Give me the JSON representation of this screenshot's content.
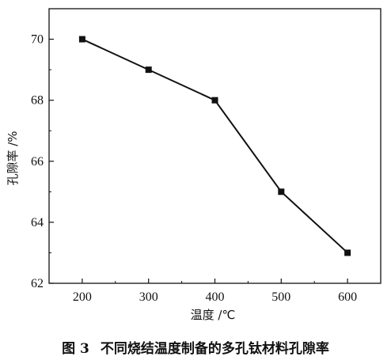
{
  "chart_data": {
    "type": "line",
    "x": [
      200,
      300,
      400,
      500,
      600
    ],
    "series": [
      {
        "values": [
          70,
          69,
          68,
          65,
          63
        ],
        "marker": "square",
        "color": "#111111"
      }
    ],
    "xlabel": "温度 /℃",
    "ylabel": "孔隙率 /%",
    "xticks": [
      200,
      300,
      400,
      500,
      600
    ],
    "yticks": [
      62,
      64,
      66,
      68,
      70
    ],
    "xlim": [
      150,
      650
    ],
    "ylim": [
      62,
      71
    ],
    "grid": false,
    "legend": "none"
  },
  "caption": {
    "figure_number": "图 3",
    "text": "不同烧结温度制备的多孔钛材料孔隙率"
  }
}
